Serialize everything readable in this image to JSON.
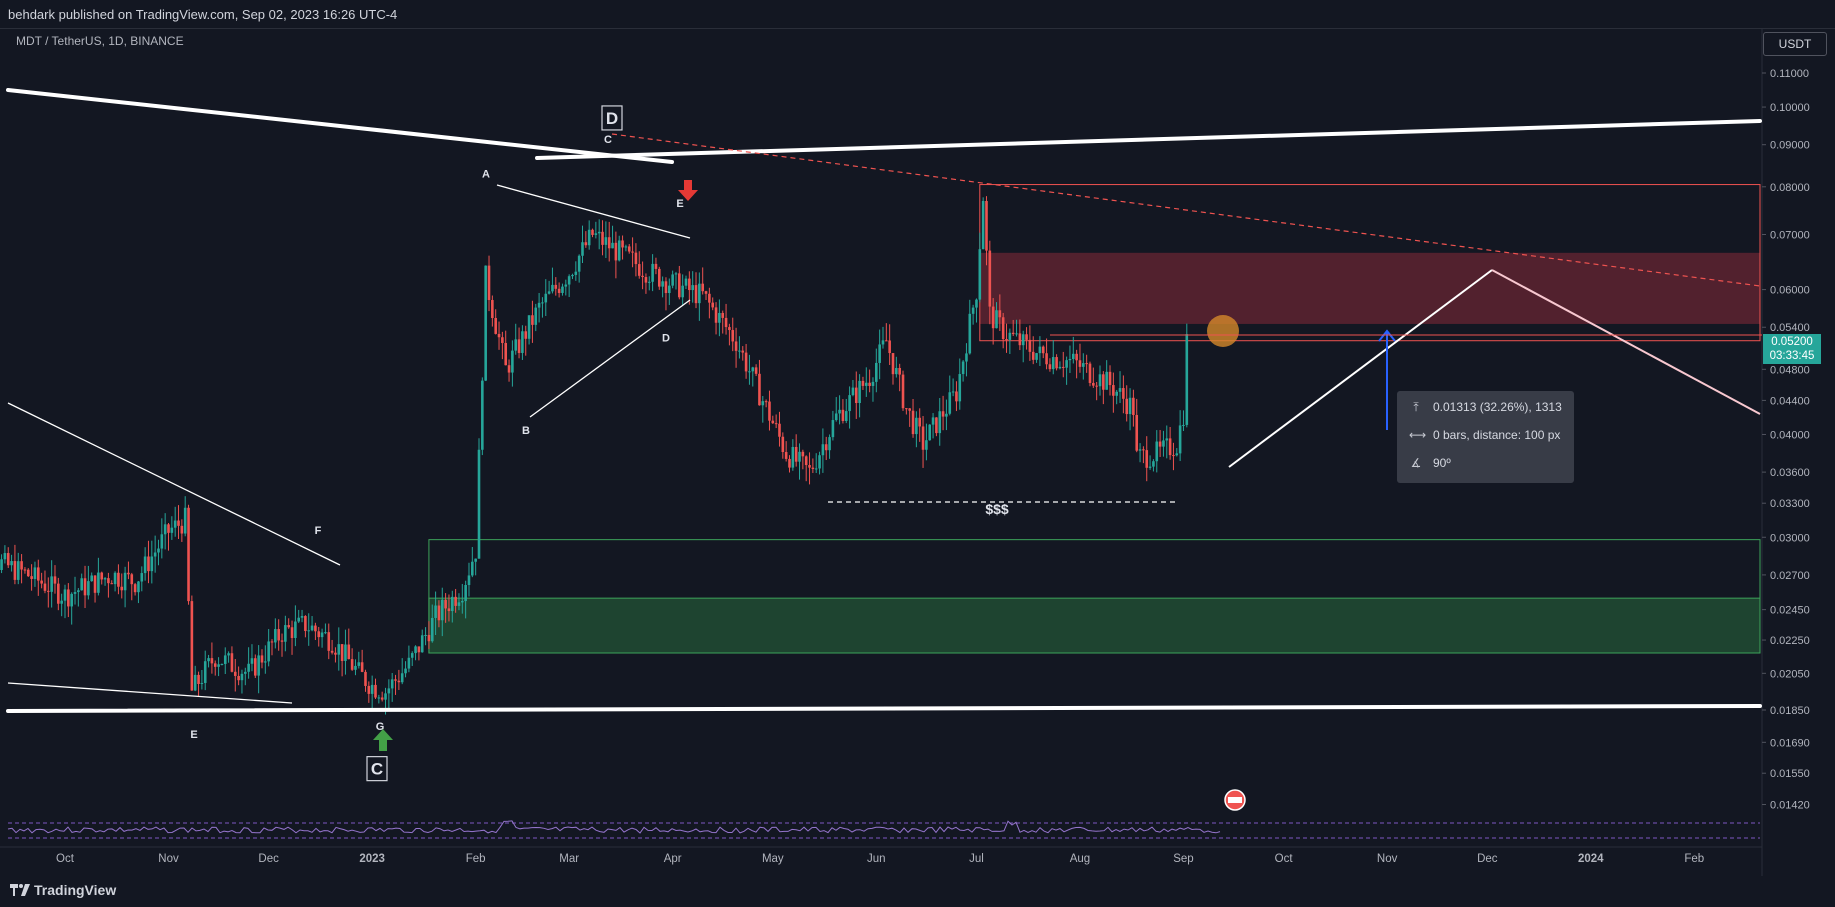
{
  "header": {
    "published_text": "behdark published on TradingView.com, Sep 02, 2023 16:26 UTC-4"
  },
  "symbol_label": "MDT / TetherUS, 1D, BINANCE",
  "currency_button": "USDT",
  "footer": {
    "logo_text": "TradingView"
  },
  "price_badge": {
    "price": "0.05200",
    "countdown": "03:33:45"
  },
  "measure_box": {
    "row1": "0.01313 (32.26%), 1313",
    "row2": "0 bars, distance: 100 px",
    "row3": "90º"
  },
  "colors": {
    "background": "#131722",
    "up": "#26a69a",
    "down": "#ef5350",
    "supply_zone": "#5a2230",
    "demand_zone": "#1e4430",
    "trend_line": "#ffffff",
    "projection_up": "#ffffff",
    "projection_down": "#f8c8d0",
    "arrow_blue": "#2962ff"
  },
  "chart_data": {
    "type": "candlestick",
    "title": "",
    "symbol": "MDT / TetherUS",
    "interval": "1D",
    "exchange": "BINANCE",
    "y_scale": "log",
    "ylim": [
      0.0138,
      0.118
    ],
    "y_ticks": [
      "0.11000",
      "0.10000",
      "0.09000",
      "0.08000",
      "0.07000",
      "0.06000",
      "0.05400",
      "0.04800",
      "0.04400",
      "0.04000",
      "0.03600",
      "0.03300",
      "0.03000",
      "0.02700",
      "0.02450",
      "0.02250",
      "0.02050",
      "0.01850",
      "0.01690",
      "0.01550",
      "0.01420"
    ],
    "x_ticks": [
      "Oct",
      "Nov",
      "Dec",
      "2023",
      "Feb",
      "Mar",
      "Apr",
      "May",
      "Jun",
      "Jul",
      "Aug",
      "Sep",
      "Oct",
      "Nov",
      "Dec",
      "2024",
      "Feb"
    ],
    "price_path_dates": [
      "2022-09-02",
      "2022-09-20",
      "2022-10-01",
      "2022-10-15",
      "2022-10-22",
      "2022-11-01",
      "2022-11-06",
      "2022-11-08",
      "2022-11-15",
      "2022-11-25",
      "2022-12-05",
      "2022-12-12",
      "2022-12-20",
      "2022-12-28",
      "2023-01-01",
      "2023-01-05",
      "2023-01-12",
      "2023-01-20",
      "2023-01-28",
      "2023-02-01",
      "2023-02-04",
      "2023-02-10",
      "2023-02-20",
      "2023-03-01",
      "2023-03-08",
      "2023-03-15",
      "2023-03-25",
      "2023-04-01",
      "2023-04-10",
      "2023-04-20",
      "2023-04-28",
      "2023-05-05",
      "2023-05-12",
      "2023-05-20",
      "2023-05-30",
      "2023-06-04",
      "2023-06-10",
      "2023-06-15",
      "2023-06-25",
      "2023-07-01",
      "2023-07-03",
      "2023-07-05",
      "2023-07-10",
      "2023-07-20",
      "2023-07-30",
      "2023-08-10",
      "2023-08-17",
      "2023-08-18",
      "2023-08-25",
      "2023-08-30",
      "2023-09-01",
      "2023-09-02"
    ],
    "price_path_values": [
      0.029,
      0.027,
      0.0255,
      0.027,
      0.0265,
      0.0305,
      0.0315,
      0.0195,
      0.0215,
      0.0205,
      0.023,
      0.0235,
      0.0225,
      0.0205,
      0.0198,
      0.0195,
      0.021,
      0.024,
      0.026,
      0.029,
      0.062,
      0.048,
      0.057,
      0.063,
      0.07,
      0.067,
      0.063,
      0.061,
      0.059,
      0.052,
      0.044,
      0.038,
      0.036,
      0.042,
      0.047,
      0.052,
      0.043,
      0.039,
      0.045,
      0.06,
      0.078,
      0.056,
      0.053,
      0.05,
      0.049,
      0.046,
      0.043,
      0.0375,
      0.038,
      0.039,
      0.0425,
      0.052
    ],
    "markers": [
      {
        "label": "D",
        "date": "2023-03-08",
        "price": 0.097,
        "boxed": true
      },
      {
        "label": "C",
        "date": "2023-03-08",
        "price": 0.0915
      },
      {
        "label": "A",
        "date": "2023-02-01",
        "price": 0.083
      },
      {
        "label": "B",
        "date": "2023-02-10",
        "price": 0.0405
      },
      {
        "label": "D",
        "date": "2023-03-28",
        "price": 0.0525
      },
      {
        "label": "E",
        "date": "2023-03-28",
        "price": 0.0765
      },
      {
        "label": "F",
        "date": "2022-12-12",
        "price": 0.0306
      },
      {
        "label": "E",
        "date": "2022-11-08",
        "price": 0.0173
      },
      {
        "label": "G",
        "date": "2022-12-28",
        "price": 0.0177
      },
      {
        "label": "C",
        "date": "2022-12-28",
        "price": 0.0157,
        "boxed": true
      },
      {
        "label": "$$$",
        "date": "2023-06-28",
        "price": 0.0324
      }
    ],
    "zones": [
      {
        "name": "supply",
        "price_top": 0.0665,
        "price_bottom": 0.0545,
        "start": "2023-07-02"
      },
      {
        "name": "demand",
        "price_top": 0.0253,
        "price_bottom": 0.0217,
        "start": "2023-01-18"
      },
      {
        "name": "demand_outline",
        "price_top": 0.0298,
        "price_bottom": 0.0217,
        "start": "2023-01-18"
      }
    ],
    "grid": false,
    "legend": "none"
  }
}
